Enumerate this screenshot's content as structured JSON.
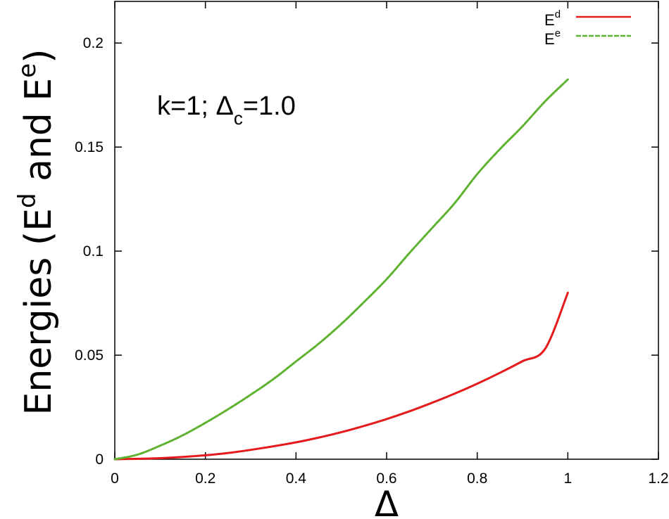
{
  "chart_data": {
    "type": "line",
    "title": "",
    "xlabel": "Δ",
    "ylabel": {
      "prefix": "Energies (E",
      "sup1": "d",
      "middle": " and E",
      "sup2": "e",
      "suffix": ")"
    },
    "xlim": [
      0,
      1.2
    ],
    "ylim": [
      0,
      0.22
    ],
    "xticks": [
      0,
      0.2,
      0.4,
      0.6,
      0.8,
      1,
      1.2
    ],
    "xtick_labels": [
      "0",
      "0.2",
      "0.4",
      "0.6",
      "0.8",
      "1",
      "1.2"
    ],
    "yticks": [
      0,
      0.05,
      0.1,
      0.15,
      0.2
    ],
    "ytick_labels": [
      "0",
      "0.05",
      "0.1",
      "0.15",
      "0.2"
    ],
    "grid": false,
    "legend_position": "top-right",
    "annotation": {
      "prefix": "k=1; Δ",
      "sub": "c",
      "suffix": "=1.0"
    },
    "series": [
      {
        "name": "E^d",
        "legend_base": "E",
        "legend_sup": "d",
        "color": "#e41a1c",
        "dash": "solid",
        "x": [
          0,
          0.05,
          0.1,
          0.15,
          0.2,
          0.25,
          0.3,
          0.35,
          0.4,
          0.45,
          0.5,
          0.55,
          0.6,
          0.65,
          0.7,
          0.75,
          0.8,
          0.85,
          0.9,
          0.95,
          1.0
        ],
        "y": [
          0,
          0.0002,
          0.0005,
          0.0011,
          0.0019,
          0.003,
          0.0045,
          0.0062,
          0.0081,
          0.0104,
          0.013,
          0.016,
          0.0193,
          0.023,
          0.0271,
          0.0315,
          0.0363,
          0.0415,
          0.0471,
          0.0531,
          0.08
        ]
      },
      {
        "name": "E^e",
        "legend_base": "E",
        "legend_sup": "e",
        "color": "#5fb130",
        "dash": "dashed",
        "x": [
          0,
          0.05,
          0.1,
          0.15,
          0.2,
          0.25,
          0.3,
          0.35,
          0.4,
          0.45,
          0.5,
          0.55,
          0.6,
          0.65,
          0.7,
          0.75,
          0.8,
          0.85,
          0.9,
          0.95,
          1.0
        ],
        "y": [
          0,
          0.0022,
          0.0065,
          0.0115,
          0.0175,
          0.024,
          0.031,
          0.0385,
          0.047,
          0.0555,
          0.065,
          0.0755,
          0.0865,
          0.099,
          0.111,
          0.123,
          0.137,
          0.149,
          0.16,
          0.172,
          0.1825
        ]
      }
    ]
  }
}
